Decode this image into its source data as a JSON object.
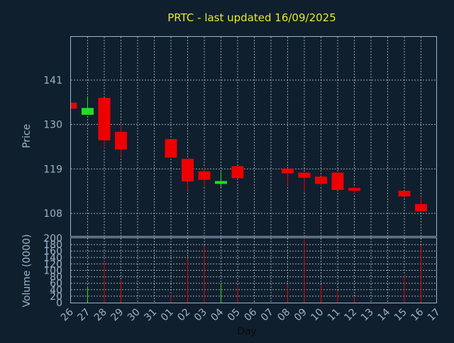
{
  "chart_data": {
    "type": "candlestick",
    "title": "PRTC - last updated 16/09/2025",
    "xlabel": "Day",
    "price_panel": {
      "ylabel": "Price",
      "yticks": [
        108,
        119,
        130,
        141
      ],
      "ylim": [
        102.4,
        151.7
      ],
      "grid": true
    },
    "volume_panel": {
      "ylabel": "Volume (0000)",
      "yticks": [
        0,
        20,
        40,
        60,
        80,
        100,
        120,
        140,
        160,
        180,
        200
      ],
      "ylim": [
        0,
        200
      ],
      "grid": true
    },
    "x_ticks": [
      "26",
      "27",
      "28",
      "29",
      "30",
      "31",
      "01",
      "02",
      "03",
      "04",
      "05",
      "06",
      "07",
      "08",
      "09",
      "10",
      "11",
      "12",
      "13",
      "14",
      "15",
      "16",
      "17"
    ],
    "candles": [
      {
        "x": "26",
        "open": 135.4,
        "high": 135.4,
        "low": 133.9,
        "close": 133.9,
        "volume": 0
      },
      {
        "x": "27",
        "open": 132.4,
        "high": 137.0,
        "low": 132.4,
        "close": 134.1,
        "volume": 51
      },
      {
        "x": "28",
        "open": 136.6,
        "high": 136.6,
        "low": 124.1,
        "close": 126.1,
        "volume": 128
      },
      {
        "x": "29",
        "open": 128.2,
        "high": 130.0,
        "low": 122.0,
        "close": 123.8,
        "volume": 70
      },
      {
        "x": "01",
        "open": 126.4,
        "high": 126.4,
        "low": 121.8,
        "close": 121.8,
        "volume": 24
      },
      {
        "x": "02",
        "open": 121.5,
        "high": 121.5,
        "low": 113.6,
        "close": 115.9,
        "volume": 137
      },
      {
        "x": "03",
        "open": 118.4,
        "high": 119.6,
        "low": 114.6,
        "close": 116.3,
        "volume": 178
      },
      {
        "x": "04",
        "open": 115.3,
        "high": 118.3,
        "low": 114.5,
        "close": 116.0,
        "volume": 59
      },
      {
        "x": "05",
        "open": 119.7,
        "high": 119.7,
        "low": 116.7,
        "close": 116.7,
        "volume": 53
      },
      {
        "x": "08",
        "open": 119.1,
        "high": 119.1,
        "low": 115.0,
        "close": 117.9,
        "volume": 57
      },
      {
        "x": "09",
        "open": 118.1,
        "high": 118.1,
        "low": 113.1,
        "close": 116.8,
        "volume": 200
      },
      {
        "x": "10",
        "open": 117.1,
        "high": 117.1,
        "low": 114.8,
        "close": 115.3,
        "volume": 53
      },
      {
        "x": "11",
        "open": 118.1,
        "high": 118.1,
        "low": 113.8,
        "close": 113.8,
        "volume": 38
      },
      {
        "x": "12",
        "open": 114.3,
        "high": 114.6,
        "low": 112.7,
        "close": 113.6,
        "volume": 18
      },
      {
        "x": "15",
        "open": 113.6,
        "high": 113.6,
        "low": 112.2,
        "close": 112.2,
        "volume": 85
      },
      {
        "x": "16",
        "open": 110.3,
        "high": 112.2,
        "low": 108.5,
        "close": 108.5,
        "volume": 178
      }
    ],
    "colors": {
      "background": "#0f1f2e",
      "axis_text": "#9bb3c8",
      "title": "#e8e82a",
      "grid": "#c8d0d8",
      "frame": "#9bb3c8",
      "up": "#22dd22",
      "down": "#ee0000"
    }
  }
}
